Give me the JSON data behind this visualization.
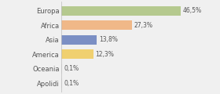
{
  "categories": [
    "Europa",
    "Africa",
    "Asia",
    "America",
    "Oceania",
    "Apolidi"
  ],
  "values": [
    46.5,
    27.3,
    13.8,
    12.3,
    0.1,
    0.1
  ],
  "labels": [
    "46,5%",
    "27,3%",
    "13,8%",
    "12,3%",
    "0,1%",
    "0,1%"
  ],
  "bar_colors": [
    "#b5c98e",
    "#f0b888",
    "#7b8fc4",
    "#f0d070",
    "#e0e0e0",
    "#e0e0e0"
  ],
  "background_color": "#f0f0f0",
  "xlim": [
    0,
    60
  ]
}
